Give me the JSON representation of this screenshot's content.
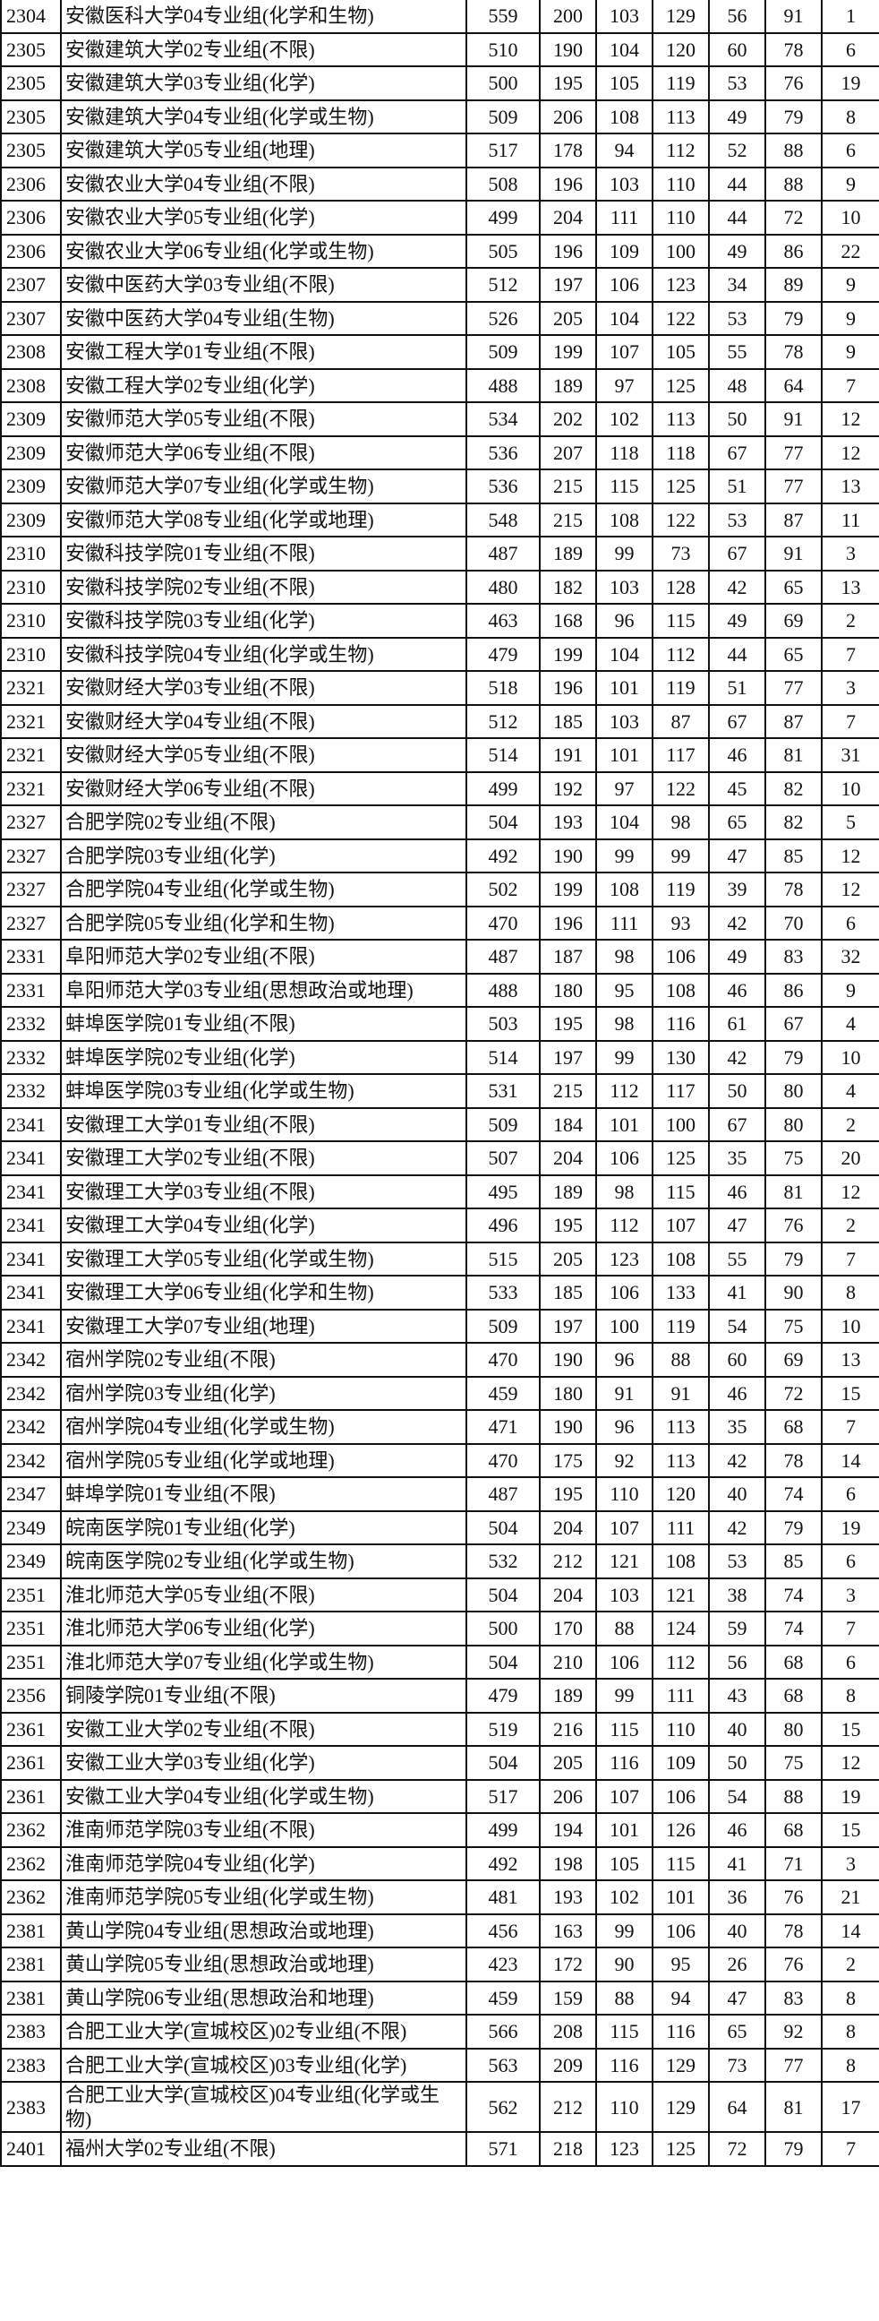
{
  "table": {
    "rows": [
      [
        "2304",
        "安徽医科大学04专业组(化学和生物)",
        "559",
        "200",
        "103",
        "129",
        "56",
        "91",
        "1"
      ],
      [
        "2305",
        "安徽建筑大学02专业组(不限)",
        "510",
        "190",
        "104",
        "120",
        "60",
        "78",
        "6"
      ],
      [
        "2305",
        "安徽建筑大学03专业组(化学)",
        "500",
        "195",
        "105",
        "119",
        "53",
        "76",
        "19"
      ],
      [
        "2305",
        "安徽建筑大学04专业组(化学或生物)",
        "509",
        "206",
        "108",
        "113",
        "49",
        "79",
        "8"
      ],
      [
        "2305",
        "安徽建筑大学05专业组(地理)",
        "517",
        "178",
        "94",
        "112",
        "52",
        "88",
        "6"
      ],
      [
        "2306",
        "安徽农业大学04专业组(不限)",
        "508",
        "196",
        "103",
        "110",
        "44",
        "88",
        "9"
      ],
      [
        "2306",
        "安徽农业大学05专业组(化学)",
        "499",
        "204",
        "111",
        "110",
        "44",
        "72",
        "10"
      ],
      [
        "2306",
        "安徽农业大学06专业组(化学或生物)",
        "505",
        "196",
        "109",
        "100",
        "49",
        "86",
        "22"
      ],
      [
        "2307",
        "安徽中医药大学03专业组(不限)",
        "512",
        "197",
        "106",
        "123",
        "34",
        "89",
        "9"
      ],
      [
        "2307",
        "安徽中医药大学04专业组(生物)",
        "526",
        "205",
        "104",
        "122",
        "53",
        "79",
        "9"
      ],
      [
        "2308",
        "安徽工程大学01专业组(不限)",
        "509",
        "199",
        "107",
        "105",
        "55",
        "78",
        "9"
      ],
      [
        "2308",
        "安徽工程大学02专业组(化学)",
        "488",
        "189",
        "97",
        "125",
        "48",
        "64",
        "7"
      ],
      [
        "2309",
        "安徽师范大学05专业组(不限)",
        "534",
        "202",
        "102",
        "113",
        "50",
        "91",
        "12"
      ],
      [
        "2309",
        "安徽师范大学06专业组(不限)",
        "536",
        "207",
        "118",
        "118",
        "67",
        "77",
        "12"
      ],
      [
        "2309",
        "安徽师范大学07专业组(化学或生物)",
        "536",
        "215",
        "115",
        "125",
        "51",
        "77",
        "13"
      ],
      [
        "2309",
        "安徽师范大学08专业组(化学或地理)",
        "548",
        "215",
        "108",
        "122",
        "53",
        "87",
        "11"
      ],
      [
        "2310",
        "安徽科技学院01专业组(不限)",
        "487",
        "189",
        "99",
        "73",
        "67",
        "91",
        "3"
      ],
      [
        "2310",
        "安徽科技学院02专业组(不限)",
        "480",
        "182",
        "103",
        "128",
        "42",
        "65",
        "13"
      ],
      [
        "2310",
        "安徽科技学院03专业组(化学)",
        "463",
        "168",
        "96",
        "115",
        "49",
        "69",
        "2"
      ],
      [
        "2310",
        "安徽科技学院04专业组(化学或生物)",
        "479",
        "199",
        "104",
        "112",
        "44",
        "65",
        "7"
      ],
      [
        "2321",
        "安徽财经大学03专业组(不限)",
        "518",
        "196",
        "101",
        "119",
        "51",
        "77",
        "3"
      ],
      [
        "2321",
        "安徽财经大学04专业组(不限)",
        "512",
        "185",
        "103",
        "87",
        "67",
        "87",
        "7"
      ],
      [
        "2321",
        "安徽财经大学05专业组(不限)",
        "514",
        "191",
        "101",
        "117",
        "46",
        "81",
        "31"
      ],
      [
        "2321",
        "安徽财经大学06专业组(不限)",
        "499",
        "192",
        "97",
        "122",
        "45",
        "82",
        "10"
      ],
      [
        "2327",
        "合肥学院02专业组(不限)",
        "504",
        "193",
        "104",
        "98",
        "65",
        "82",
        "5"
      ],
      [
        "2327",
        "合肥学院03专业组(化学)",
        "492",
        "190",
        "99",
        "99",
        "47",
        "85",
        "12"
      ],
      [
        "2327",
        "合肥学院04专业组(化学或生物)",
        "502",
        "199",
        "108",
        "119",
        "39",
        "78",
        "12"
      ],
      [
        "2327",
        "合肥学院05专业组(化学和生物)",
        "470",
        "196",
        "111",
        "93",
        "42",
        "70",
        "6"
      ],
      [
        "2331",
        "阜阳师范大学02专业组(不限)",
        "487",
        "187",
        "98",
        "106",
        "49",
        "83",
        "32"
      ],
      [
        "2331",
        "阜阳师范大学03专业组(思想政治或地理)",
        "488",
        "180",
        "95",
        "108",
        "46",
        "86",
        "9"
      ],
      [
        "2332",
        "蚌埠医学院01专业组(不限)",
        "503",
        "195",
        "98",
        "116",
        "61",
        "67",
        "4"
      ],
      [
        "2332",
        "蚌埠医学院02专业组(化学)",
        "514",
        "197",
        "99",
        "130",
        "42",
        "79",
        "10"
      ],
      [
        "2332",
        "蚌埠医学院03专业组(化学或生物)",
        "531",
        "215",
        "112",
        "117",
        "50",
        "80",
        "4"
      ],
      [
        "2341",
        "安徽理工大学01专业组(不限)",
        "509",
        "184",
        "101",
        "100",
        "67",
        "80",
        "2"
      ],
      [
        "2341",
        "安徽理工大学02专业组(不限)",
        "507",
        "204",
        "106",
        "125",
        "35",
        "75",
        "20"
      ],
      [
        "2341",
        "安徽理工大学03专业组(不限)",
        "495",
        "189",
        "98",
        "115",
        "46",
        "81",
        "12"
      ],
      [
        "2341",
        "安徽理工大学04专业组(化学)",
        "496",
        "195",
        "112",
        "107",
        "47",
        "76",
        "2"
      ],
      [
        "2341",
        "安徽理工大学05专业组(化学或生物)",
        "515",
        "205",
        "123",
        "108",
        "55",
        "79",
        "7"
      ],
      [
        "2341",
        "安徽理工大学06专业组(化学和生物)",
        "533",
        "185",
        "106",
        "133",
        "41",
        "90",
        "8"
      ],
      [
        "2341",
        "安徽理工大学07专业组(地理)",
        "509",
        "197",
        "100",
        "119",
        "54",
        "75",
        "10"
      ],
      [
        "2342",
        "宿州学院02专业组(不限)",
        "470",
        "190",
        "96",
        "88",
        "60",
        "69",
        "13"
      ],
      [
        "2342",
        "宿州学院03专业组(化学)",
        "459",
        "180",
        "91",
        "91",
        "46",
        "72",
        "15"
      ],
      [
        "2342",
        "宿州学院04专业组(化学或生物)",
        "471",
        "190",
        "96",
        "113",
        "35",
        "68",
        "7"
      ],
      [
        "2342",
        "宿州学院05专业组(化学或地理)",
        "470",
        "175",
        "92",
        "113",
        "42",
        "78",
        "14"
      ],
      [
        "2347",
        "蚌埠学院01专业组(不限)",
        "487",
        "195",
        "110",
        "120",
        "40",
        "74",
        "6"
      ],
      [
        "2349",
        "皖南医学院01专业组(化学)",
        "504",
        "204",
        "107",
        "111",
        "42",
        "79",
        "19"
      ],
      [
        "2349",
        "皖南医学院02专业组(化学或生物)",
        "532",
        "212",
        "121",
        "108",
        "53",
        "85",
        "6"
      ],
      [
        "2351",
        "淮北师范大学05专业组(不限)",
        "504",
        "204",
        "103",
        "121",
        "38",
        "74",
        "3"
      ],
      [
        "2351",
        "淮北师范大学06专业组(化学)",
        "500",
        "170",
        "88",
        "124",
        "59",
        "74",
        "7"
      ],
      [
        "2351",
        "淮北师范大学07专业组(化学或生物)",
        "504",
        "210",
        "106",
        "112",
        "56",
        "68",
        "6"
      ],
      [
        "2356",
        "铜陵学院01专业组(不限)",
        "479",
        "189",
        "99",
        "111",
        "43",
        "68",
        "8"
      ],
      [
        "2361",
        "安徽工业大学02专业组(不限)",
        "519",
        "216",
        "115",
        "110",
        "40",
        "80",
        "15"
      ],
      [
        "2361",
        "安徽工业大学03专业组(化学)",
        "504",
        "205",
        "116",
        "109",
        "50",
        "75",
        "12"
      ],
      [
        "2361",
        "安徽工业大学04专业组(化学或生物)",
        "517",
        "206",
        "107",
        "106",
        "54",
        "88",
        "19"
      ],
      [
        "2362",
        "淮南师范学院03专业组(不限)",
        "499",
        "194",
        "101",
        "126",
        "46",
        "68",
        "15"
      ],
      [
        "2362",
        "淮南师范学院04专业组(化学)",
        "492",
        "198",
        "105",
        "115",
        "41",
        "71",
        "3"
      ],
      [
        "2362",
        "淮南师范学院05专业组(化学或生物)",
        "481",
        "193",
        "102",
        "101",
        "36",
        "76",
        "21"
      ],
      [
        "2381",
        "黄山学院04专业组(思想政治或地理)",
        "456",
        "163",
        "99",
        "106",
        "40",
        "78",
        "14"
      ],
      [
        "2381",
        "黄山学院05专业组(思想政治或地理)",
        "423",
        "172",
        "90",
        "95",
        "26",
        "76",
        "2"
      ],
      [
        "2381",
        "黄山学院06专业组(思想政治和地理)",
        "459",
        "159",
        "88",
        "94",
        "47",
        "83",
        "8"
      ],
      [
        "2383",
        "合肥工业大学(宣城校区)02专业组(不限)",
        "566",
        "208",
        "115",
        "116",
        "65",
        "92",
        "8"
      ],
      [
        "2383",
        "合肥工业大学(宣城校区)03专业组(化学)",
        "563",
        "209",
        "116",
        "129",
        "73",
        "77",
        "8"
      ],
      [
        "2383",
        "合肥工业大学(宣城校区)04专业组(化学或生物)",
        "562",
        "212",
        "110",
        "129",
        "64",
        "81",
        "17"
      ],
      [
        "2401",
        "福州大学02专业组(不限)",
        "571",
        "218",
        "123",
        "125",
        "72",
        "79",
        "7"
      ]
    ]
  }
}
